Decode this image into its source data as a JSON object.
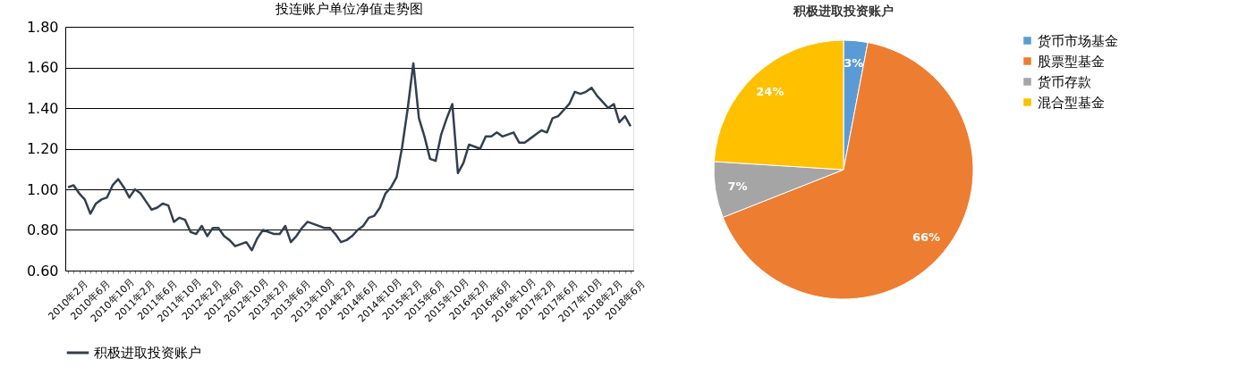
{
  "chart_data": [
    {
      "type": "line",
      "title": "投连账户单位净值走势图",
      "categories": [
        "2010年2月",
        null,
        null,
        null,
        "2010年6月",
        null,
        null,
        null,
        "2010年10月",
        null,
        null,
        null,
        "2011年2月",
        null,
        null,
        null,
        "2011年6月",
        null,
        null,
        null,
        "2011年10月",
        null,
        null,
        null,
        "2012年2月",
        null,
        null,
        null,
        "2012年6月",
        null,
        null,
        null,
        "2012年10月",
        null,
        null,
        null,
        "2013年2月",
        null,
        null,
        null,
        "2013年6月",
        null,
        null,
        null,
        "2013年10月",
        null,
        null,
        null,
        "2014年2月",
        null,
        null,
        null,
        "2014年6月",
        null,
        null,
        null,
        "2014年10月",
        null,
        null,
        null,
        "2015年2月",
        null,
        null,
        null,
        "2015年6月",
        null,
        null,
        null,
        "2015年10月",
        null,
        null,
        null,
        "2016年2月",
        null,
        null,
        null,
        "2016年6月",
        null,
        null,
        null,
        "2016年10月",
        null,
        null,
        null,
        "2017年2月",
        null,
        null,
        null,
        "2017年6月",
        null,
        null,
        null,
        "2017年10月",
        null,
        null,
        null,
        "2018年2月",
        null,
        null,
        null,
        "2018年6月",
        null
      ],
      "series": [
        {
          "name": "积极进取投资账户",
          "color": "#333f50",
          "values": [
            1.01,
            1.02,
            0.98,
            0.95,
            0.88,
            0.93,
            0.95,
            0.96,
            1.02,
            1.05,
            1.01,
            0.96,
            1.0,
            0.98,
            0.94,
            0.9,
            0.91,
            0.93,
            0.92,
            0.84,
            0.86,
            0.85,
            0.79,
            0.78,
            0.82,
            0.77,
            0.81,
            0.81,
            0.77,
            0.75,
            0.72,
            0.73,
            0.74,
            0.7,
            0.76,
            0.8,
            0.79,
            0.78,
            0.78,
            0.82,
            0.74,
            0.77,
            0.81,
            0.84,
            0.83,
            0.82,
            0.81,
            0.81,
            0.78,
            0.74,
            0.75,
            0.77,
            0.8,
            0.82,
            0.86,
            0.87,
            0.91,
            0.98,
            1.01,
            1.06,
            1.21,
            1.4,
            1.62,
            1.35,
            1.26,
            1.15,
            1.14,
            1.27,
            1.35,
            1.42,
            1.08,
            1.13,
            1.22,
            1.21,
            1.2,
            1.26,
            1.26,
            1.28,
            1.26,
            1.27,
            1.28,
            1.23,
            1.23,
            1.25,
            1.27,
            1.29,
            1.28,
            1.35,
            1.36,
            1.39,
            1.42,
            1.48,
            1.47,
            1.48,
            1.5,
            1.46,
            1.43,
            1.4,
            1.42,
            1.33,
            1.36,
            1.31
          ]
        }
      ],
      "ylim": [
        0.6,
        1.8
      ],
      "yticks": [
        {
          "value": 0.6,
          "label": "0.60"
        },
        {
          "value": 0.8,
          "label": "0.80"
        },
        {
          "value": 1.0,
          "label": "1.00"
        },
        {
          "value": 1.2,
          "label": "1.20"
        },
        {
          "value": 1.4,
          "label": "1.40"
        },
        {
          "value": 1.6,
          "label": "1.60"
        },
        {
          "value": 1.8,
          "label": "1.80"
        }
      ],
      "grid": "y",
      "legend": "bottom",
      "marker": "none",
      "line_style": "solid"
    },
    {
      "type": "pie",
      "title": "积极进取投资账户",
      "categories": [
        "货币市场基金",
        "股票型基金",
        "货币存款",
        "混合型基金"
      ],
      "values": [
        3,
        66,
        7,
        24
      ],
      "colors": [
        "#5b9bd5",
        "#ed7d31",
        "#a5a5a5",
        "#ffc000"
      ],
      "value_labels": [
        "3%",
        "66%",
        "7%",
        "24%"
      ],
      "legend": "right"
    }
  ]
}
